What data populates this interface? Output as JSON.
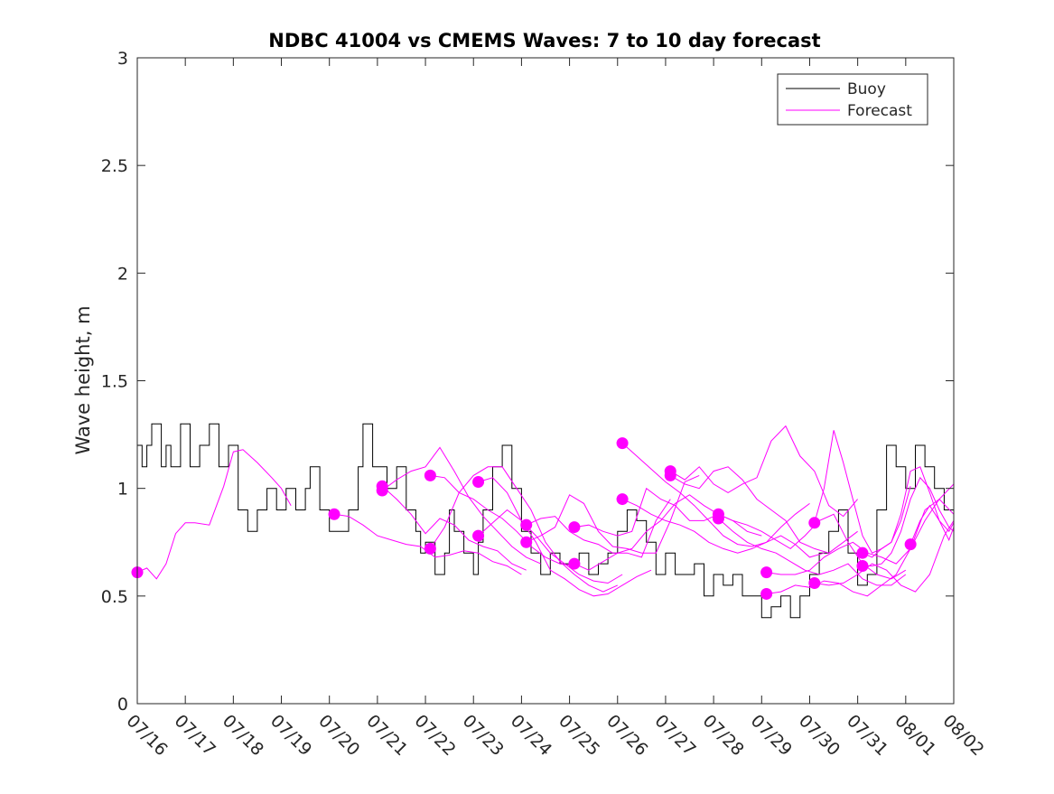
{
  "chart_data": {
    "type": "line",
    "title": "NDBC 41004 vs CMEMS Waves: 7 to 10 day forecast",
    "xlabel": "",
    "ylabel": "Wave height, m",
    "ylim": [
      0,
      3
    ],
    "yticks": [
      0,
      0.5,
      1,
      1.5,
      2,
      2.5,
      3
    ],
    "ytick_labels": [
      "0",
      "0.5",
      "1",
      "1.5",
      "2",
      "2.5",
      "3"
    ],
    "xlim": [
      0,
      17
    ],
    "xtick_labels": [
      "07/16",
      "07/17",
      "07/18",
      "07/19",
      "07/20",
      "07/21",
      "07/22",
      "07/23",
      "07/24",
      "07/25",
      "07/26",
      "07/27",
      "07/28",
      "07/29",
      "07/30",
      "07/31",
      "08/01",
      "08/02"
    ],
    "grid": false,
    "legend": {
      "position": "top-right",
      "entries": [
        "Buoy",
        "Forecast"
      ]
    },
    "colors": {
      "buoy": "#000000",
      "forecast": "#ff00ff"
    },
    "buoy": {
      "name": "Buoy",
      "x": [
        0.0,
        0.1,
        0.2,
        0.3,
        0.5,
        0.6,
        0.7,
        0.9,
        1.1,
        1.3,
        1.5,
        1.7,
        1.9,
        2.1,
        2.3,
        2.5,
        2.7,
        2.9,
        3.1,
        3.3,
        3.5,
        3.6,
        3.8,
        4.0,
        4.2,
        4.4,
        4.6,
        4.7,
        4.9,
        5.1,
        5.2,
        5.4,
        5.6,
        5.8,
        5.9,
        6.0,
        6.2,
        6.4,
        6.5,
        6.6,
        6.8,
        7.0,
        7.1,
        7.2,
        7.4,
        7.6,
        7.8,
        8.0,
        8.2,
        8.4,
        8.6,
        8.8,
        9.0,
        9.2,
        9.4,
        9.6,
        9.8,
        10.0,
        10.2,
        10.4,
        10.6,
        10.8,
        11.0,
        11.2,
        11.4,
        11.6,
        11.8,
        12.0,
        12.2,
        12.4,
        12.6,
        12.8,
        13.0,
        13.2,
        13.4,
        13.6,
        13.8,
        14.0,
        14.2,
        14.4,
        14.6,
        14.8,
        15.0,
        15.2,
        15.4,
        15.6,
        15.8,
        16.0,
        16.2,
        16.4,
        16.6,
        16.8,
        17.0
      ],
      "y": [
        1.2,
        1.1,
        1.2,
        1.3,
        1.1,
        1.2,
        1.1,
        1.3,
        1.1,
        1.2,
        1.3,
        1.1,
        1.2,
        0.9,
        0.8,
        0.9,
        1.0,
        0.9,
        1.0,
        0.9,
        1.0,
        1.1,
        0.9,
        0.8,
        0.8,
        0.9,
        1.1,
        1.3,
        1.1,
        1.1,
        1.0,
        1.1,
        0.9,
        0.8,
        0.7,
        0.75,
        0.6,
        0.7,
        0.9,
        0.8,
        0.7,
        0.6,
        0.75,
        0.9,
        1.1,
        1.2,
        1.0,
        0.8,
        0.7,
        0.6,
        0.7,
        0.65,
        0.65,
        0.7,
        0.6,
        0.65,
        0.7,
        0.8,
        0.9,
        0.85,
        0.75,
        0.6,
        0.7,
        0.6,
        0.6,
        0.65,
        0.5,
        0.6,
        0.55,
        0.6,
        0.5,
        0.5,
        0.4,
        0.45,
        0.5,
        0.4,
        0.5,
        0.6,
        0.7,
        0.8,
        0.9,
        0.7,
        0.55,
        0.6,
        0.9,
        1.2,
        1.1,
        1.0,
        1.2,
        1.1,
        1.0,
        0.9,
        0.85
      ]
    },
    "series": [
      {
        "x": [
          0.0,
          0.2,
          0.4,
          0.6,
          0.8,
          1.0,
          1.2,
          1.5,
          1.8,
          2.0,
          2.2,
          2.5,
          2.8,
          3.0,
          3.2
        ],
        "y": [
          0.61,
          0.63,
          0.58,
          0.65,
          0.79,
          0.84,
          0.84,
          0.83,
          1.01,
          1.17,
          1.18,
          1.12,
          1.05,
          1.0,
          0.92
        ]
      },
      {
        "x": [
          4.1,
          4.4,
          4.7,
          5.0,
          5.3,
          5.6,
          5.9,
          6.2,
          6.5,
          6.8,
          7.1,
          7.4,
          7.7,
          8.0
        ],
        "y": [
          0.88,
          0.87,
          0.83,
          0.78,
          0.76,
          0.74,
          0.73,
          0.68,
          0.69,
          0.71,
          0.7,
          0.66,
          0.64,
          0.6
        ]
      },
      {
        "x": [
          5.1,
          5.4,
          5.7,
          6.0,
          6.3,
          6.6,
          6.9,
          7.2,
          7.5,
          7.8,
          8.1
        ],
        "y": [
          1.01,
          0.95,
          0.88,
          0.79,
          0.86,
          0.83,
          0.76,
          0.73,
          0.71,
          0.65,
          0.62
        ]
      },
      {
        "x": [
          5.1,
          5.4,
          5.7,
          6.0,
          6.3,
          6.6,
          6.9,
          7.2,
          7.5,
          7.8,
          8.1,
          8.4
        ],
        "y": [
          0.99,
          1.04,
          1.08,
          1.1,
          1.19,
          1.08,
          0.96,
          0.87,
          0.8,
          0.73,
          0.68,
          0.65
        ]
      },
      {
        "x": [
          6.1,
          6.4,
          6.7,
          7.0,
          7.3,
          7.6,
          7.9,
          8.2,
          8.5,
          8.8,
          9.1
        ],
        "y": [
          1.06,
          1.05,
          0.98,
          0.95,
          0.9,
          0.86,
          0.8,
          0.73,
          0.68,
          0.65,
          0.64
        ]
      },
      {
        "x": [
          6.1,
          6.4,
          6.7,
          7.0,
          7.3,
          7.6,
          7.9,
          8.2,
          8.5,
          8.8,
          9.1,
          9.4,
          9.7,
          10.0
        ],
        "y": [
          0.72,
          0.82,
          0.98,
          1.06,
          1.1,
          1.1,
          1.0,
          0.9,
          0.75,
          0.66,
          0.6,
          0.55,
          0.52,
          0.55
        ]
      },
      {
        "x": [
          7.1,
          7.4,
          7.7,
          8.0,
          8.3,
          8.6,
          8.9,
          9.2,
          9.5,
          9.8,
          10.1
        ],
        "y": [
          1.03,
          1.05,
          0.98,
          0.85,
          0.78,
          0.7,
          0.65,
          0.6,
          0.57,
          0.56,
          0.6
        ]
      },
      {
        "x": [
          7.1,
          7.4,
          7.7,
          8.0,
          8.3,
          8.6,
          8.9,
          9.2,
          9.5,
          9.8,
          10.1,
          10.4,
          10.7
        ],
        "y": [
          0.78,
          0.84,
          0.9,
          0.85,
          0.75,
          0.62,
          0.58,
          0.53,
          0.5,
          0.51,
          0.55,
          0.59,
          0.62
        ]
      },
      {
        "x": [
          8.1,
          8.4,
          8.7,
          9.0,
          9.3,
          9.6,
          9.9,
          10.2,
          10.5,
          10.8,
          11.1
        ],
        "y": [
          0.83,
          0.86,
          0.87,
          0.8,
          0.76,
          0.74,
          0.7,
          0.7,
          0.68,
          0.85,
          0.95
        ]
      },
      {
        "x": [
          8.1,
          8.4,
          8.7,
          9.0,
          9.3,
          9.6,
          9.9,
          10.2,
          10.5,
          10.8,
          11.1,
          11.4,
          11.7
        ],
        "y": [
          0.75,
          0.78,
          0.82,
          0.97,
          0.93,
          0.8,
          0.73,
          0.72,
          0.7,
          0.7,
          0.85,
          1.03,
          1.06
        ]
      },
      {
        "x": [
          9.1,
          9.4,
          9.7,
          10.0,
          10.3,
          10.6,
          10.9,
          11.2,
          11.5,
          11.8,
          12.1
        ],
        "y": [
          0.82,
          0.83,
          0.8,
          0.78,
          0.8,
          1.0,
          0.95,
          0.92,
          0.85,
          0.85,
          0.88
        ]
      },
      {
        "x": [
          9.1,
          9.4,
          9.7,
          10.0,
          10.3,
          10.6,
          10.9,
          11.2,
          11.5,
          11.8,
          12.1,
          12.4,
          12.7,
          13.0
        ],
        "y": [
          0.65,
          0.62,
          0.66,
          0.7,
          0.72,
          0.8,
          0.85,
          0.93,
          0.97,
          0.92,
          0.88,
          0.85,
          0.8,
          0.78
        ]
      },
      {
        "x": [
          10.1,
          10.4,
          10.7,
          11.0,
          11.3,
          11.6,
          11.9,
          12.2,
          12.5,
          12.8,
          13.1,
          13.4,
          13.7,
          14.0
        ],
        "y": [
          1.21,
          1.15,
          1.09,
          1.03,
          0.98,
          0.92,
          0.85,
          0.78,
          0.74,
          0.73,
          0.75,
          0.82,
          0.88,
          0.93
        ]
      },
      {
        "x": [
          10.1,
          10.4,
          10.7,
          11.0,
          11.3,
          11.6,
          11.9,
          12.2,
          12.5,
          12.8,
          13.1,
          13.4,
          13.7,
          14.0,
          14.3
        ],
        "y": [
          0.95,
          0.92,
          0.88,
          0.85,
          0.83,
          0.8,
          0.75,
          0.72,
          0.7,
          0.72,
          0.75,
          0.78,
          0.74,
          0.68,
          0.7
        ]
      },
      {
        "x": [
          11.1,
          11.4,
          11.7,
          12.0,
          12.3,
          12.6,
          12.9,
          13.2,
          13.5,
          13.8,
          14.1,
          14.4,
          14.7,
          15.0
        ],
        "y": [
          1.08,
          1.04,
          1.1,
          1.02,
          0.98,
          1.02,
          1.05,
          1.22,
          1.29,
          1.15,
          1.08,
          0.92,
          0.87,
          0.95
        ]
      },
      {
        "x": [
          11.1,
          11.4,
          11.7,
          12.0,
          12.3,
          12.6,
          12.9,
          13.2,
          13.5,
          13.8,
          14.1,
          14.4,
          14.7,
          15.0
        ],
        "y": [
          1.06,
          1.02,
          1.0,
          1.08,
          1.1,
          1.04,
          0.95,
          0.9,
          0.85,
          0.75,
          0.72,
          0.7,
          0.75,
          0.8
        ]
      },
      {
        "x": [
          12.1,
          12.4,
          12.7,
          13.0,
          13.3,
          13.6,
          13.9,
          14.2,
          14.5,
          14.8,
          15.1,
          15.4,
          15.7,
          16.0
        ],
        "y": [
          0.88,
          0.85,
          0.83,
          0.8,
          0.76,
          0.72,
          0.78,
          0.85,
          0.88,
          0.75,
          0.65,
          0.6,
          0.58,
          0.62
        ]
      },
      {
        "x": [
          12.1,
          12.4,
          12.7,
          13.0,
          13.3,
          13.6,
          13.9,
          14.2,
          14.5,
          14.8,
          15.1,
          15.4,
          15.7,
          16.0
        ],
        "y": [
          0.86,
          0.8,
          0.75,
          0.72,
          0.7,
          0.66,
          0.62,
          0.6,
          0.62,
          0.65,
          0.58,
          0.55,
          0.55,
          0.6
        ]
      },
      {
        "x": [
          13.1,
          13.4,
          13.7,
          14.0,
          14.3,
          14.6,
          14.9,
          15.2,
          15.5,
          15.8,
          16.1,
          16.4,
          16.7,
          17.0
        ],
        "y": [
          0.61,
          0.6,
          0.6,
          0.62,
          0.68,
          0.72,
          0.75,
          0.7,
          0.68,
          0.65,
          0.72,
          0.9,
          0.95,
          1.02
        ]
      },
      {
        "x": [
          13.1,
          13.4,
          13.7,
          14.0,
          14.3,
          14.6,
          14.9,
          15.2,
          15.5,
          15.8,
          16.1,
          16.4,
          16.7,
          17.0
        ],
        "y": [
          0.51,
          0.52,
          0.55,
          0.54,
          0.57,
          0.56,
          0.52,
          0.5,
          0.55,
          0.6,
          0.72,
          0.85,
          0.95,
          0.88
        ]
      },
      {
        "x": [
          14.1,
          14.3,
          14.5,
          14.7,
          14.9,
          15.1,
          15.3,
          15.5,
          15.7,
          15.9,
          16.1
        ],
        "y": [
          0.84,
          1.0,
          1.27,
          1.12,
          0.95,
          0.78,
          0.7,
          0.72,
          0.75,
          0.85,
          1.01
        ]
      },
      {
        "x": [
          14.1,
          14.4,
          14.7,
          15.0,
          15.3,
          15.6,
          15.9,
          16.2,
          16.5,
          16.8,
          17.0
        ],
        "y": [
          0.56,
          0.55,
          0.56,
          0.6,
          0.65,
          0.62,
          0.55,
          0.52,
          0.6,
          0.78,
          0.85
        ]
      },
      {
        "x": [
          15.1,
          15.3,
          15.5,
          15.7,
          15.9,
          16.1,
          16.3,
          16.5,
          16.7,
          16.9,
          17.0
        ],
        "y": [
          0.7,
          0.68,
          0.72,
          0.75,
          0.88,
          1.08,
          1.1,
          0.98,
          0.85,
          0.8,
          0.84
        ]
      },
      {
        "x": [
          15.1,
          15.3,
          15.5,
          15.7,
          15.9,
          16.1,
          16.3,
          16.5,
          16.7,
          16.9,
          17.0
        ],
        "y": [
          0.64,
          0.64,
          0.65,
          0.7,
          0.8,
          0.95,
          1.05,
          1.0,
          0.9,
          0.82,
          0.8
        ]
      },
      {
        "x": [
          16.1,
          16.3,
          16.5,
          16.7,
          16.9,
          17.0
        ],
        "y": [
          0.74,
          0.85,
          0.92,
          0.85,
          0.76,
          0.82
        ]
      }
    ]
  }
}
